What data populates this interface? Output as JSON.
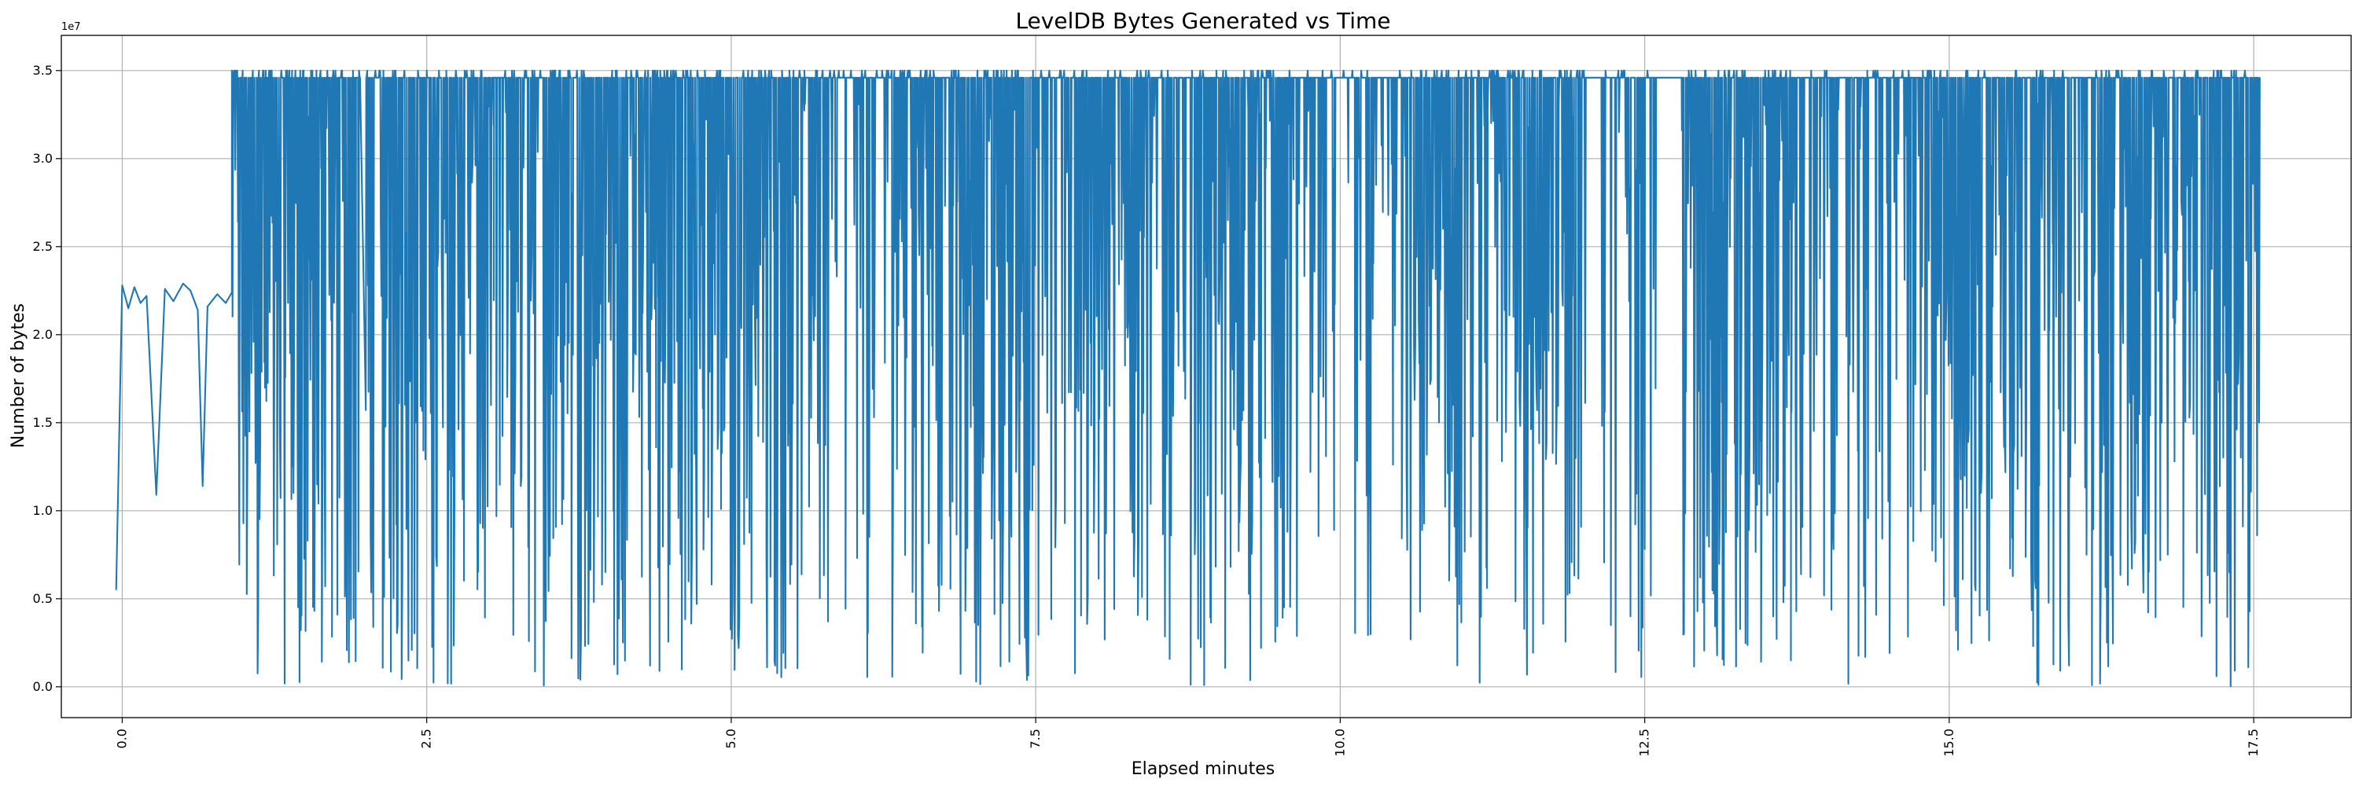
{
  "chart_data": {
    "type": "line",
    "title": "LevelDB Bytes Generated vs Time",
    "xlabel": "Elapsed minutes",
    "ylabel": "Number of bytes",
    "y_offset_label": "1e7",
    "xlim": [
      -0.5,
      18.3
    ],
    "ylim": [
      -1750000,
      37000000
    ],
    "x_ticks": [
      0.0,
      2.5,
      5.0,
      7.5,
      10.0,
      12.5,
      15.0,
      17.5
    ],
    "x_tick_labels": [
      "0.0",
      "2.5",
      "5.0",
      "7.5",
      "10.0",
      "12.5",
      "15.0",
      "17.5"
    ],
    "y_ticks": [
      0,
      5000000,
      10000000,
      15000000,
      20000000,
      25000000,
      30000000,
      35000000
    ],
    "y_tick_labels": [
      "0.0",
      "0.5",
      "1.0",
      "1.5",
      "2.0",
      "2.5",
      "3.0",
      "3.5"
    ],
    "grid": true,
    "legend": false,
    "colors": {
      "line": "#1f77b4",
      "grid": "#b0b0b0",
      "axes": "#000000"
    },
    "series": [
      {
        "x": [
          -0.05,
          0.0,
          0.05,
          0.1,
          0.15,
          0.2,
          0.28,
          0.35,
          0.42,
          0.5,
          0.56,
          0.62,
          0.66,
          0.7,
          0.78,
          0.85,
          0.9
        ],
        "y": [
          5500000,
          22800000,
          21500000,
          22700000,
          21800000,
          22200000,
          10900000,
          22600000,
          21900000,
          22900000,
          22500000,
          21400000,
          11400000,
          21600000,
          22300000,
          21800000,
          22400000
        ]
      }
    ],
    "burst_segments": [
      {
        "x_range": [
          0.9,
          1.95
        ],
        "density": 1.0
      },
      {
        "x_range": [
          2.0,
          3.05
        ],
        "density": 0.9
      },
      {
        "x_range": [
          3.05,
          4.05
        ],
        "density": 0.8
      },
      {
        "x_range": [
          4.05,
          4.4
        ],
        "density": 1.0
      },
      {
        "x_range": [
          4.4,
          5.6
        ],
        "density": 0.9
      },
      {
        "x_range": [
          5.6,
          6.8
        ],
        "density": 0.55
      },
      {
        "x_range": [
          6.8,
          7.5
        ],
        "density": 1.0
      },
      {
        "x_range": [
          7.5,
          9.0
        ],
        "density": 0.7
      },
      {
        "x_range": [
          9.0,
          9.6
        ],
        "density": 1.0
      },
      {
        "x_range": [
          9.6,
          10.5
        ],
        "density": 0.45
      },
      {
        "x_range": [
          10.5,
          10.95
        ],
        "density": 1.0
      },
      {
        "x_range": [
          10.95,
          12.0
        ],
        "density": 0.85
      },
      {
        "x_range": [
          12.0,
          12.6
        ],
        "density": 0.35
      },
      {
        "x_range": [
          12.8,
          13.7
        ],
        "density": 0.95
      },
      {
        "x_range": [
          13.7,
          14.8
        ],
        "density": 0.5
      },
      {
        "x_range": [
          14.8,
          15.25
        ],
        "density": 1.0
      },
      {
        "x_range": [
          15.25,
          16.2
        ],
        "density": 0.65
      },
      {
        "x_range": [
          16.2,
          16.6
        ],
        "density": 1.0
      },
      {
        "x_range": [
          16.6,
          17.55
        ],
        "density": 0.7
      }
    ],
    "burst_value_range": [
      0,
      35000000
    ],
    "plateau_value": 34600000
  }
}
